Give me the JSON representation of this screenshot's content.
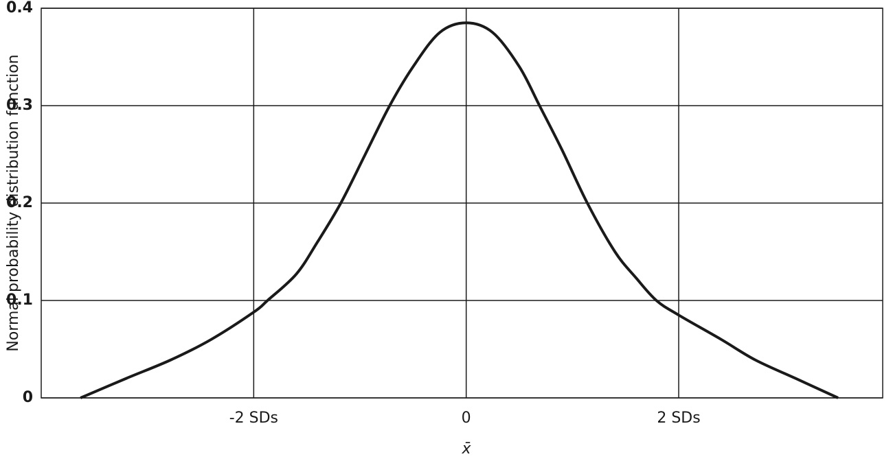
{
  "chart_data": {
    "type": "line",
    "y_label": "Normal probability distribution function",
    "x_label": "x̄",
    "x": [
      -3.63,
      -3.2,
      -2.78,
      -2.4,
      -2,
      -1.87,
      -1.6,
      -1.4,
      -1.18,
      -0.95,
      -0.72,
      -0.5,
      -0.25,
      0,
      0.25,
      0.5,
      0.69,
      0.9,
      1.14,
      1.4,
      1.6,
      1.79,
      2,
      2.4,
      2.72,
      3.1,
      3.5
    ],
    "values": [
      0,
      0.02,
      0.039,
      0.06,
      0.088,
      0.1,
      0.127,
      0.16,
      0.2,
      0.25,
      0.3,
      0.34,
      0.375,
      0.385,
      0.375,
      0.34,
      0.3,
      0.255,
      0.2,
      0.15,
      0.123,
      0.1,
      0.085,
      0.06,
      0.039,
      0.02,
      0
    ],
    "color": "#1a1a1a",
    "xlim": [
      -4,
      3.92
    ],
    "ylim": [
      0,
      0.4
    ],
    "xticks": [
      {
        "value": -2,
        "label": "-2 SDs"
      },
      0,
      {
        "value": 2,
        "label": "2 SDs"
      }
    ],
    "yticks": [
      0,
      0.1,
      0.2,
      0.3,
      0.4
    ],
    "grid": true
  }
}
